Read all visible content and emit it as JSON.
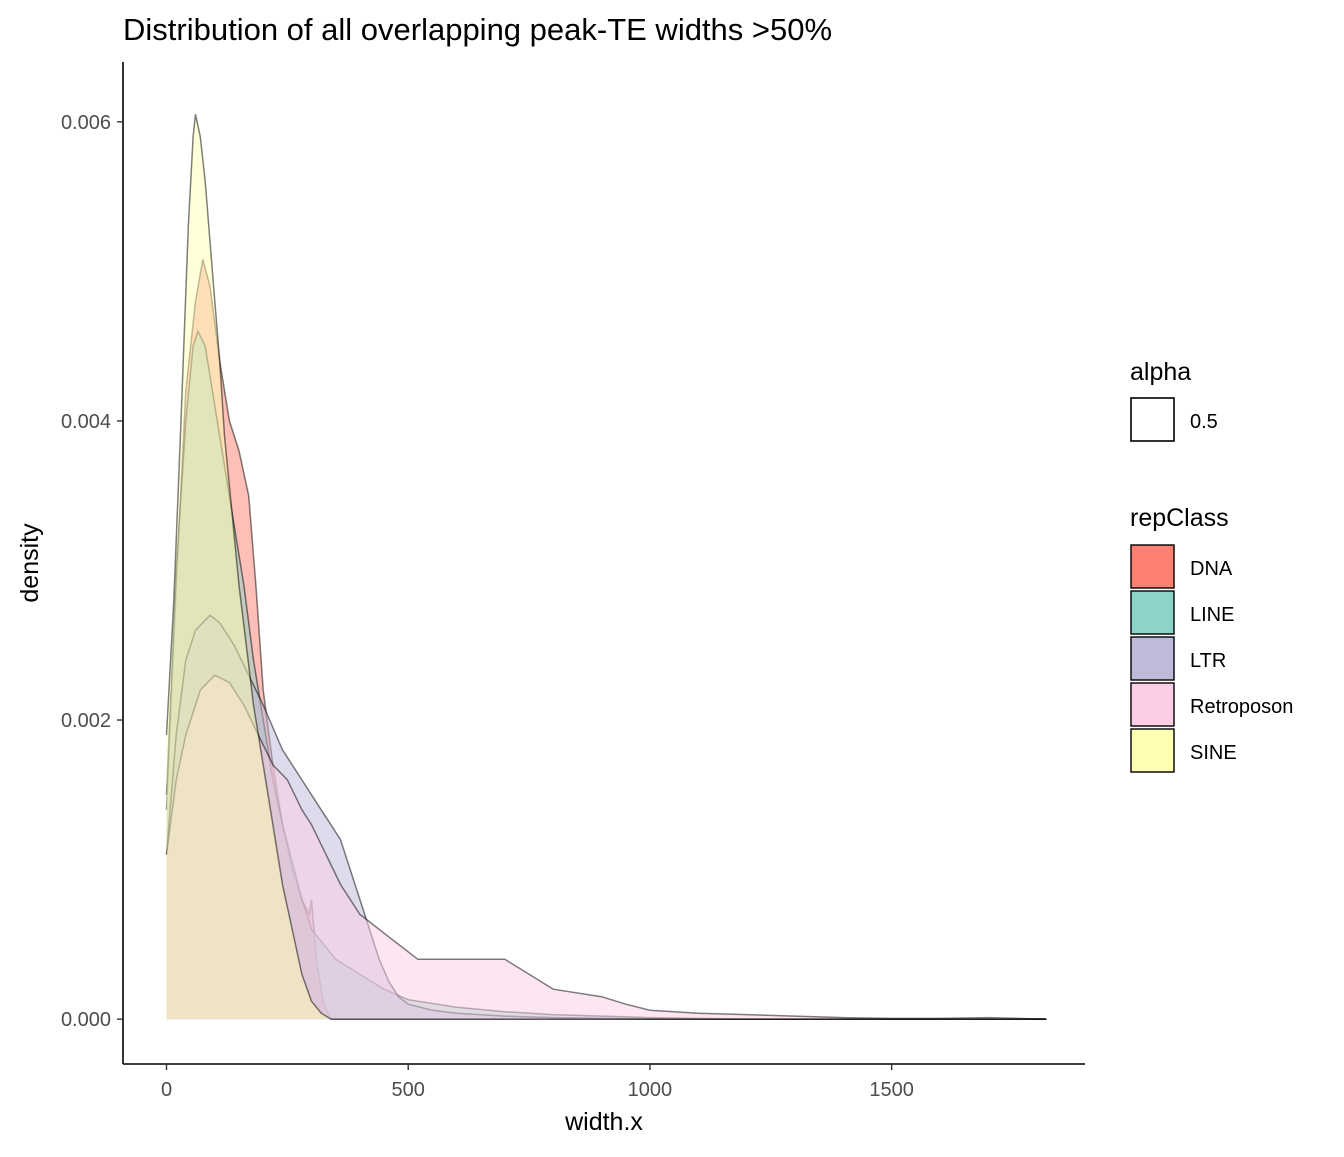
{
  "chart_data": {
    "type": "area",
    "title": "Distribution of all overlapping peak-TE widths >50%",
    "xlabel": "width.x",
    "ylabel": "density",
    "xlim": [
      -90,
      1900
    ],
    "ylim": [
      -0.0003,
      0.0064
    ],
    "x_ticks": [
      0,
      500,
      1000,
      1500
    ],
    "x_tick_labels": [
      "0",
      "500",
      "1000",
      "1500"
    ],
    "y_ticks": [
      0.0,
      0.002,
      0.004,
      0.006
    ],
    "y_tick_labels": [
      "0.000",
      "0.002",
      "0.004",
      "0.006"
    ],
    "grid": false,
    "legend_placement": "right",
    "legends": {
      "alpha": {
        "title": "alpha",
        "entries": [
          "0.5"
        ]
      },
      "fill": {
        "title": "repClass",
        "entries": [
          "DNA",
          "LINE",
          "LTR",
          "Retroposon",
          "SINE"
        ]
      }
    },
    "series": [
      {
        "name": "DNA",
        "color": "#FB8072",
        "points": [
          [
            0,
            0.0014
          ],
          [
            20,
            0.0029
          ],
          [
            40,
            0.0042
          ],
          [
            60,
            0.0048
          ],
          [
            75,
            0.00508
          ],
          [
            90,
            0.0049
          ],
          [
            110,
            0.0044
          ],
          [
            130,
            0.004
          ],
          [
            150,
            0.0038
          ],
          [
            170,
            0.0035
          ],
          [
            185,
            0.0029
          ],
          [
            200,
            0.0022
          ],
          [
            220,
            0.0017
          ],
          [
            240,
            0.0013
          ],
          [
            260,
            0.001
          ],
          [
            280,
            0.0008
          ],
          [
            295,
            0.0007
          ],
          [
            300,
            0.0008
          ],
          [
            310,
            0.0004
          ],
          [
            325,
            0.0001
          ],
          [
            340,
            0.0
          ],
          [
            1820,
            0.0
          ]
        ]
      },
      {
        "name": "LINE",
        "color": "#8DD3C7",
        "points": [
          [
            0,
            0.0015
          ],
          [
            20,
            0.003
          ],
          [
            40,
            0.004
          ],
          [
            55,
            0.0045
          ],
          [
            65,
            0.0046
          ],
          [
            80,
            0.0045
          ],
          [
            100,
            0.0041
          ],
          [
            120,
            0.0037
          ],
          [
            140,
            0.0033
          ],
          [
            160,
            0.0029
          ],
          [
            180,
            0.0024
          ],
          [
            200,
            0.002
          ],
          [
            220,
            0.0016
          ],
          [
            240,
            0.0013
          ],
          [
            260,
            0.00105
          ],
          [
            280,
            0.0008
          ],
          [
            300,
            0.0006
          ],
          [
            350,
            0.0004
          ],
          [
            400,
            0.0003
          ],
          [
            450,
            0.0002
          ],
          [
            500,
            0.00013
          ],
          [
            600,
            8e-05
          ],
          [
            700,
            5e-05
          ],
          [
            800,
            3e-05
          ],
          [
            1000,
            1e-05
          ],
          [
            1200,
            0.0
          ],
          [
            1820,
            0.0
          ]
        ]
      },
      {
        "name": "LTR",
        "color": "#BEBADA",
        "points": [
          [
            0,
            0.0011
          ],
          [
            20,
            0.0019
          ],
          [
            40,
            0.0024
          ],
          [
            60,
            0.0026
          ],
          [
            90,
            0.0027
          ],
          [
            110,
            0.00265
          ],
          [
            140,
            0.0025
          ],
          [
            170,
            0.0023
          ],
          [
            200,
            0.0021
          ],
          [
            240,
            0.0018
          ],
          [
            260,
            0.0017
          ],
          [
            280,
            0.0016
          ],
          [
            300,
            0.0015
          ],
          [
            320,
            0.0014
          ],
          [
            340,
            0.0013
          ],
          [
            360,
            0.0012
          ],
          [
            380,
            0.001
          ],
          [
            400,
            0.0008
          ],
          [
            420,
            0.0006
          ],
          [
            440,
            0.0004
          ],
          [
            460,
            0.00025
          ],
          [
            480,
            0.00015
          ],
          [
            500,
            0.0001
          ],
          [
            550,
            6e-05
          ],
          [
            600,
            4e-05
          ],
          [
            700,
            2e-05
          ],
          [
            800,
            1e-05
          ],
          [
            1000,
            0.0
          ],
          [
            1820,
            0.0
          ]
        ]
      },
      {
        "name": "Retroposon",
        "color": "#FCCDE5",
        "points": [
          [
            0,
            0.0011
          ],
          [
            20,
            0.0016
          ],
          [
            40,
            0.0019
          ],
          [
            70,
            0.0022
          ],
          [
            100,
            0.0023
          ],
          [
            130,
            0.00225
          ],
          [
            160,
            0.0021
          ],
          [
            190,
            0.0019
          ],
          [
            220,
            0.0017
          ],
          [
            250,
            0.0016
          ],
          [
            280,
            0.0014
          ],
          [
            300,
            0.0013
          ],
          [
            330,
            0.0011
          ],
          [
            360,
            0.0009
          ],
          [
            400,
            0.0007
          ],
          [
            440,
            0.0006
          ],
          [
            480,
            0.0005
          ],
          [
            520,
            0.0004
          ],
          [
            580,
            0.0004
          ],
          [
            650,
            0.0004
          ],
          [
            700,
            0.0004
          ],
          [
            750,
            0.0003
          ],
          [
            800,
            0.0002
          ],
          [
            900,
            0.00015
          ],
          [
            950,
            0.0001
          ],
          [
            1000,
            6e-05
          ],
          [
            1100,
            4e-05
          ],
          [
            1200,
            3e-05
          ],
          [
            1300,
            2e-05
          ],
          [
            1400,
            1e-05
          ],
          [
            1500,
            5e-06
          ],
          [
            1600,
            5e-06
          ],
          [
            1700,
            1e-05
          ],
          [
            1820,
            0.0
          ]
        ]
      },
      {
        "name": "SINE",
        "color": "#FFFFB3",
        "points": [
          [
            0,
            0.0019
          ],
          [
            15,
            0.0028
          ],
          [
            30,
            0.004
          ],
          [
            45,
            0.0053
          ],
          [
            55,
            0.0059
          ],
          [
            60,
            0.00605
          ],
          [
            70,
            0.0059
          ],
          [
            80,
            0.0056
          ],
          [
            90,
            0.0052
          ],
          [
            100,
            0.0048
          ],
          [
            110,
            0.0044
          ],
          [
            120,
            0.0039
          ],
          [
            135,
            0.0034
          ],
          [
            150,
            0.0029
          ],
          [
            165,
            0.0025
          ],
          [
            180,
            0.0021
          ],
          [
            200,
            0.0017
          ],
          [
            220,
            0.0013
          ],
          [
            240,
            0.0009
          ],
          [
            260,
            0.0006
          ],
          [
            280,
            0.0003
          ],
          [
            300,
            0.00012
          ],
          [
            320,
            4e-05
          ],
          [
            340,
            0.0
          ],
          [
            1820,
            0.0
          ]
        ]
      }
    ]
  }
}
